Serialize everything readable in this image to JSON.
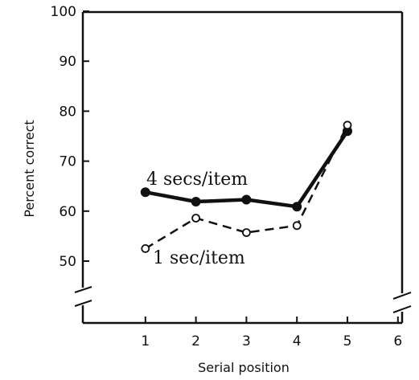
{
  "chart_data": {
    "type": "line",
    "xlabel": "Serial position",
    "ylabel": "Percent correct",
    "xlim": [
      0,
      6
    ],
    "ylim": [
      40,
      100
    ],
    "xticks": [
      1,
      2,
      3,
      4,
      5,
      6
    ],
    "yticks": [
      50,
      60,
      70,
      80,
      90,
      100
    ],
    "axis_breaks": true,
    "grid": false,
    "series": [
      {
        "name": "4 secs/item",
        "line": "solid",
        "marker": "filled-circle",
        "color": "#111111",
        "points": [
          [
            1,
            63.8
          ],
          [
            2,
            61.9
          ],
          [
            3,
            62.3
          ],
          [
            4,
            60.9
          ],
          [
            5,
            76
          ]
        ]
      },
      {
        "name": "1 sec/item",
        "line": "dashed",
        "marker": "open-circle",
        "color": "#111111",
        "points": [
          [
            1,
            52.5
          ],
          [
            2,
            58.6
          ],
          [
            3,
            55.7
          ],
          [
            4,
            57.1
          ],
          [
            5,
            77.2
          ]
        ]
      }
    ]
  }
}
